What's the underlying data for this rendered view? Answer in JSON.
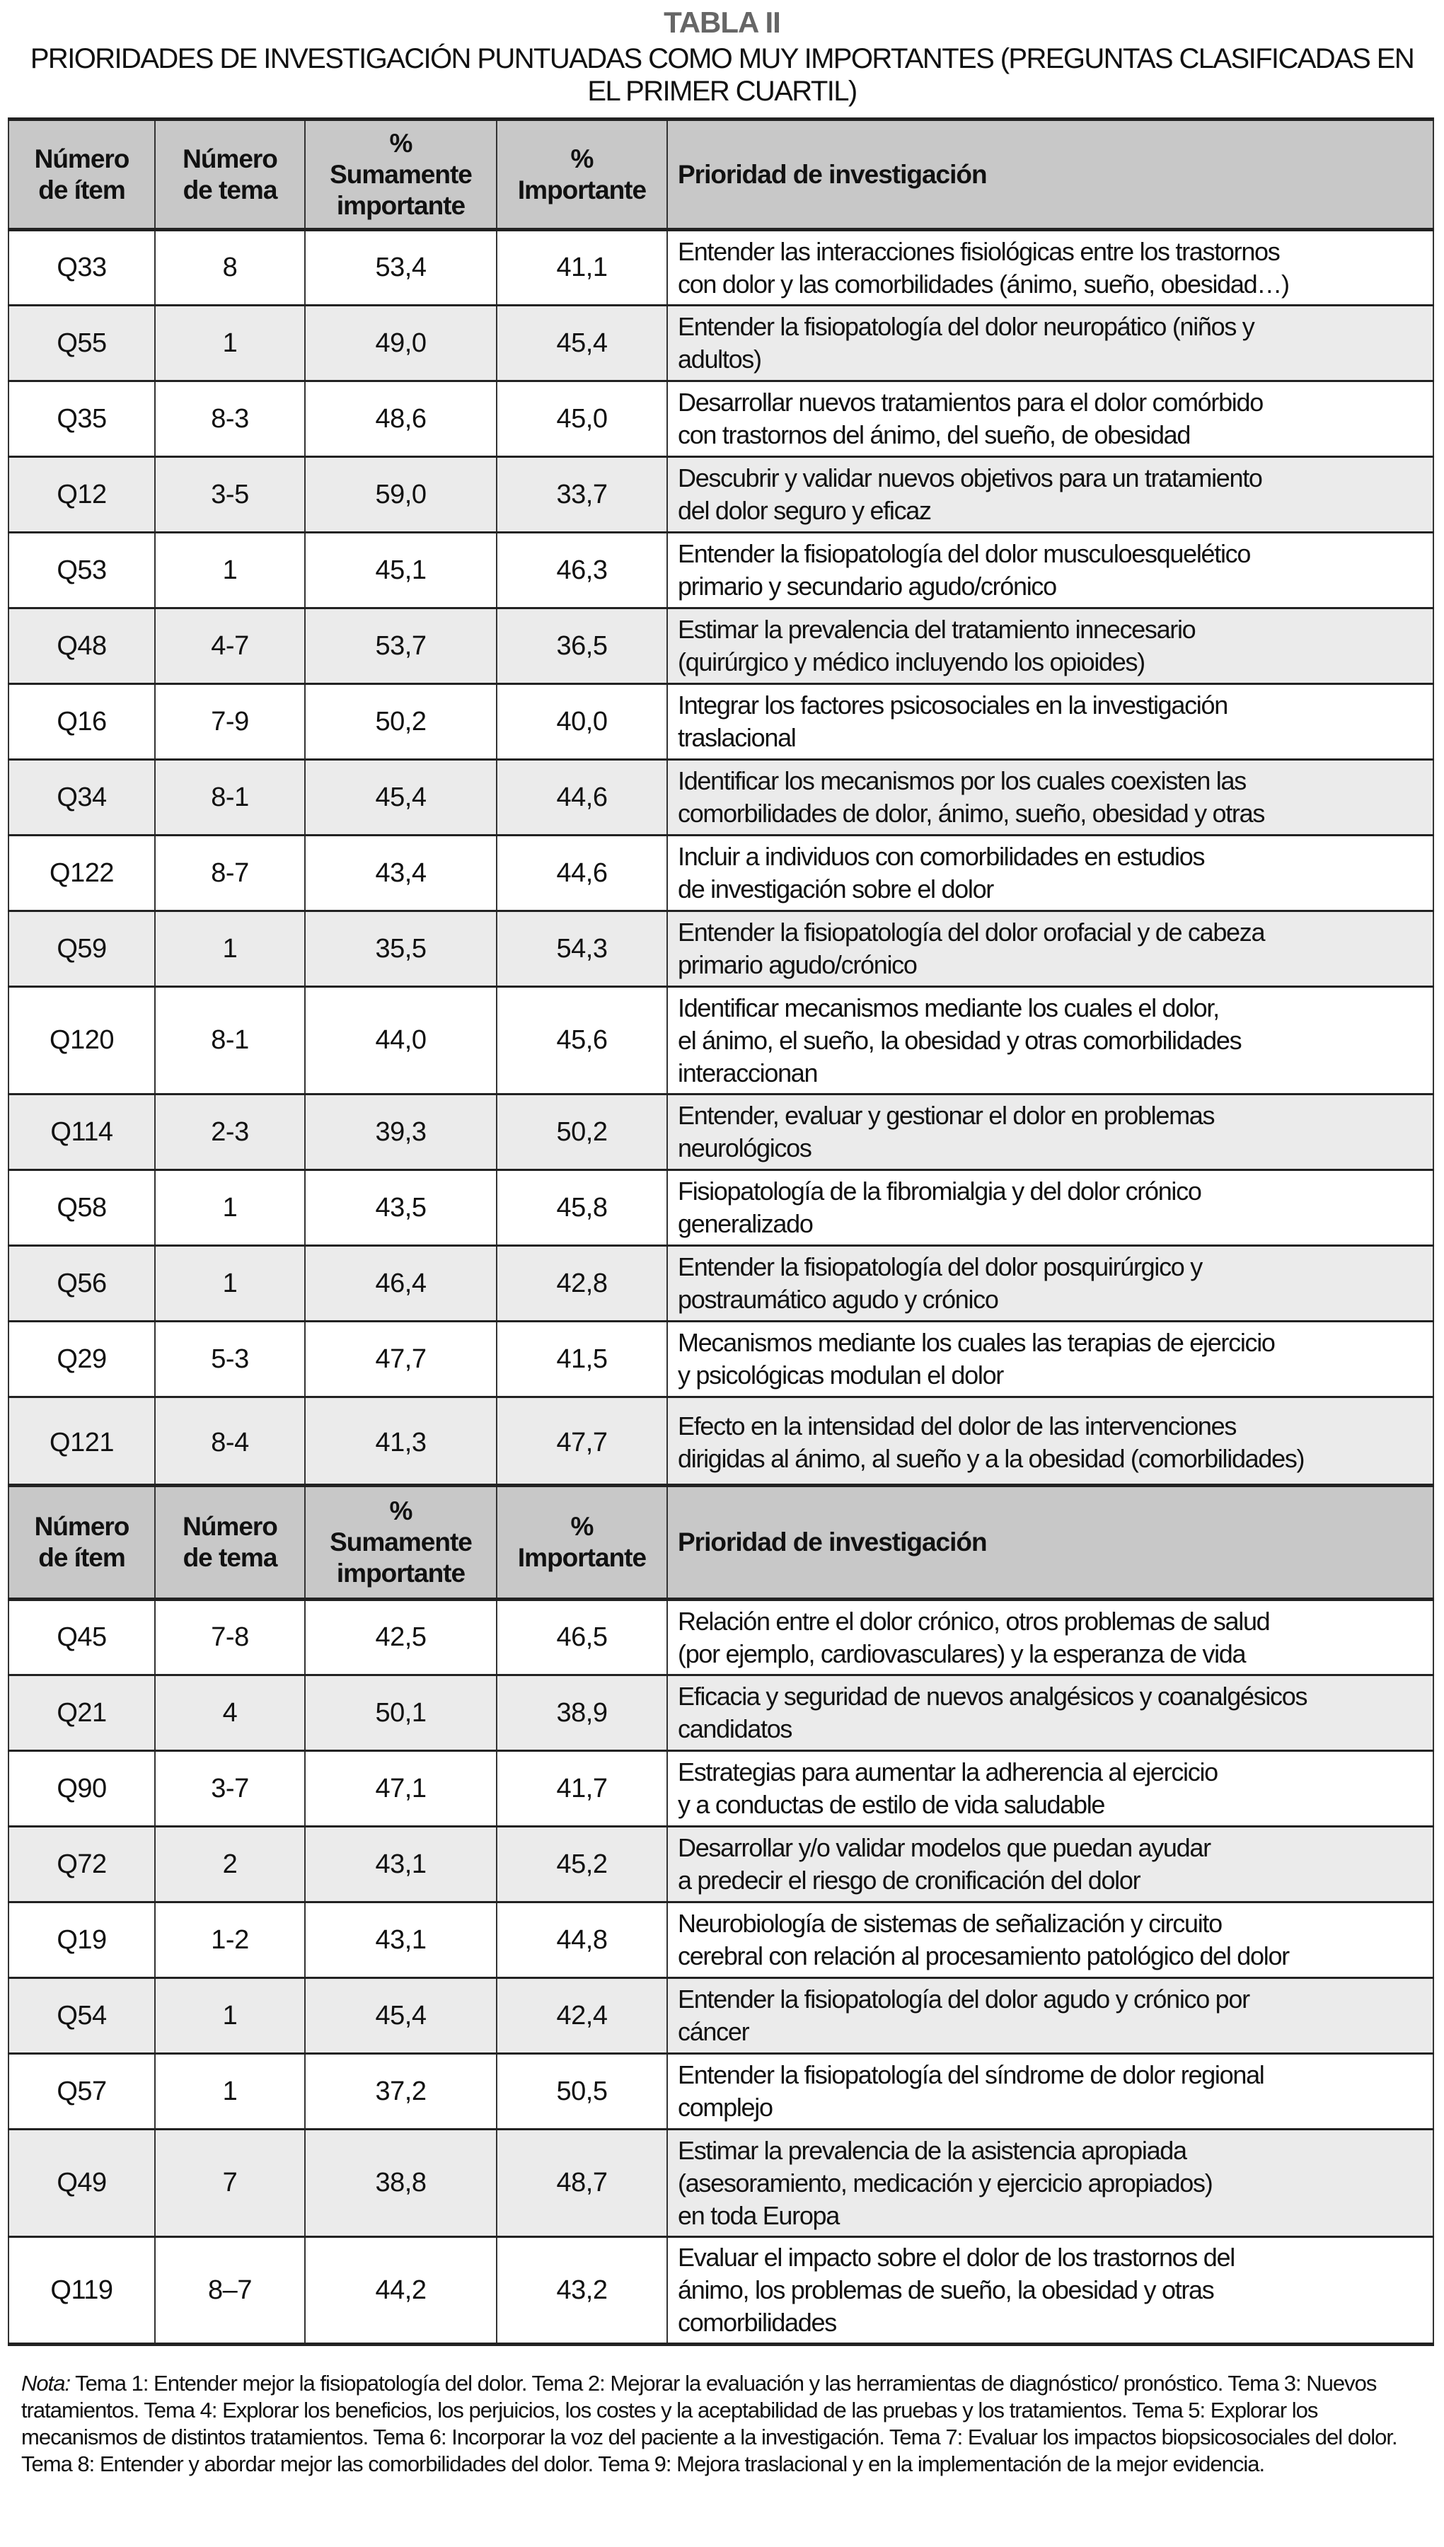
{
  "title": "TABLA II",
  "subtitle": "PRIORIDADES DE INVESTIGACIÓN PUNTUADAS COMO MUY IMPORTANTES (PREGUNTAS CLASIFICADAS EN\nEL PRIMER CUARTIL)",
  "headers": {
    "item": "Número\nde ítem",
    "tema": "Número\nde tema",
    "sumamente": "%\nSumamente\nimportante",
    "importante": "%\nImportante",
    "prioridad": "Prioridad de investigación"
  },
  "table1": [
    {
      "item": "Q33",
      "tema": "8",
      "sum": "53,4",
      "imp": "41,1",
      "desc": "Entender las interacciones fisiológicas entre los trastornos\ncon dolor y las comorbilidades (ánimo, sueño, obesidad…)"
    },
    {
      "item": "Q55",
      "tema": "1",
      "sum": "49,0",
      "imp": "45,4",
      "desc": "Entender la fisiopatología del dolor neuropático (niños y\nadultos)"
    },
    {
      "item": "Q35",
      "tema": "8-3",
      "sum": "48,6",
      "imp": "45,0",
      "desc": "Desarrollar nuevos tratamientos para el dolor comórbido\ncon trastornos del ánimo, del sueño, de obesidad"
    },
    {
      "item": "Q12",
      "tema": "3-5",
      "sum": "59,0",
      "imp": "33,7",
      "desc": "Descubrir y validar nuevos objetivos para un tratamiento\ndel dolor seguro y eficaz"
    },
    {
      "item": "Q53",
      "tema": "1",
      "sum": "45,1",
      "imp": "46,3",
      "desc": "Entender la fisiopatología del dolor musculoesquelético\nprimario y secundario agudo/crónico"
    },
    {
      "item": "Q48",
      "tema": "4-7",
      "sum": "53,7",
      "imp": "36,5",
      "desc": "Estimar la prevalencia del tratamiento innecesario\n(quirúrgico y médico incluyendo los opioides)"
    },
    {
      "item": "Q16",
      "tema": "7-9",
      "sum": "50,2",
      "imp": "40,0",
      "desc": "Integrar los factores psicosociales en la investigación\ntraslacional"
    },
    {
      "item": "Q34",
      "tema": "8-1",
      "sum": "45,4",
      "imp": "44,6",
      "desc": "Identificar los mecanismos por los cuales coexisten las\ncomorbilidades de dolor, ánimo, sueño, obesidad y otras"
    },
    {
      "item": "Q122",
      "tema": "8-7",
      "sum": "43,4",
      "imp": "44,6",
      "desc": "Incluir a individuos con comorbilidades en estudios\nde investigación sobre el dolor"
    },
    {
      "item": "Q59",
      "tema": "1",
      "sum": "35,5",
      "imp": "54,3",
      "desc": "Entender la fisiopatología del dolor orofacial y de cabeza\nprimario agudo/crónico"
    },
    {
      "item": "Q120",
      "tema": "8-1",
      "sum": "44,0",
      "imp": "45,6",
      "desc": "Identificar mecanismos mediante los cuales el dolor,\nel ánimo, el sueño, la obesidad y otras comorbilidades\ninteraccionan"
    },
    {
      "item": "Q114",
      "tema": "2-3",
      "sum": "39,3",
      "imp": "50,2",
      "desc": "Entender, evaluar y gestionar el dolor en problemas\nneurológicos"
    },
    {
      "item": "Q58",
      "tema": "1",
      "sum": "43,5",
      "imp": "45,8",
      "desc": "Fisiopatología de la fibromialgia y del dolor crónico\ngeneralizado"
    },
    {
      "item": "Q56",
      "tema": "1",
      "sum": "46,4",
      "imp": "42,8",
      "desc": "Entender la fisiopatología del dolor posquirúrgico y\npostraumático agudo y crónico"
    },
    {
      "item": "Q29",
      "tema": "5-3",
      "sum": "47,7",
      "imp": "41,5",
      "desc": "Mecanismos mediante los cuales las terapias de ejercicio\ny psicológicas modulan el dolor"
    },
    {
      "item": "Q121",
      "tema": "8-4",
      "sum": "41,3",
      "imp": "47,7",
      "desc": "Efecto en la intensidad del dolor de las intervenciones\ndirigidas al ánimo, al sueño y a la obesidad (comorbilidades)"
    }
  ],
  "table2": [
    {
      "item": "Q45",
      "tema": "7-8",
      "sum": "42,5",
      "imp": "46,5",
      "desc": "Relación entre el dolor crónico, otros problemas de salud\n(por ejemplo, cardiovasculares) y la esperanza de vida"
    },
    {
      "item": "Q21",
      "tema": "4",
      "sum": "50,1",
      "imp": "38,9",
      "desc": "Eficacia y seguridad de nuevos analgésicos y coanalgésicos\ncandidatos"
    },
    {
      "item": "Q90",
      "tema": "3-7",
      "sum": "47,1",
      "imp": "41,7",
      "desc": "Estrategias para aumentar la adherencia al ejercicio\ny a conductas de estilo de vida saludable"
    },
    {
      "item": "Q72",
      "tema": "2",
      "sum": "43,1",
      "imp": "45,2",
      "desc": "Desarrollar y/o validar modelos que puedan ayudar\na predecir el riesgo de cronificación del dolor"
    },
    {
      "item": "Q19",
      "tema": "1-2",
      "sum": "43,1",
      "imp": "44,8",
      "desc": "Neurobiología de sistemas de señalización y circuito\ncerebral con relación al procesamiento patológico del dolor"
    },
    {
      "item": "Q54",
      "tema": "1",
      "sum": "45,4",
      "imp": "42,4",
      "desc": "Entender la fisiopatología del dolor agudo y crónico por\ncáncer"
    },
    {
      "item": "Q57",
      "tema": "1",
      "sum": "37,2",
      "imp": "50,5",
      "desc": "Entender la fisiopatología del síndrome de dolor regional\ncomplejo"
    },
    {
      "item": "Q49",
      "tema": "7",
      "sum": "38,8",
      "imp": "48,7",
      "desc": "Estimar la prevalencia de la asistencia apropiada\n(asesoramiento, medicación y ejercicio apropiados)\nen toda Europa"
    },
    {
      "item": "Q119",
      "tema": "8–7",
      "sum": "44,2",
      "imp": "43,2",
      "desc": "Evaluar el impacto sobre el dolor de los trastornos del\nánimo, los problemas de sueño, la obesidad y otras\ncomorbilidades"
    }
  ],
  "note": {
    "label": "Nota:",
    "text": " Tema 1: Entender mejor la fisiopatología del dolor. Tema 2: Mejorar la evaluación y las herramientas de diagnóstico/ pronóstico. Tema 3: Nuevos tratamientos. Tema 4: Explorar los beneficios, los perjuicios, los costes y la aceptabilidad de las pruebas y los tratamientos. Tema 5: Explorar los mecanismos de distintos tratamientos. Tema 6: Incorporar la voz del paciente a la investigación. Tema 7: Evaluar los impactos biopsicosociales del dolor. Tema 8: Entender y abordar mejor las comorbilidades del dolor. Tema 9: Mejora traslacional y en la implementación de la mejor evidencia."
  },
  "colors": {
    "header_bg": "#c8c8c8",
    "alt_row_bg": "#ebebeb",
    "title": "#666666"
  }
}
